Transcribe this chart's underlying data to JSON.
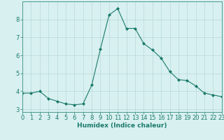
{
  "x": [
    0,
    1,
    2,
    3,
    4,
    5,
    6,
    7,
    8,
    9,
    10,
    11,
    12,
    13,
    14,
    15,
    16,
    17,
    18,
    19,
    20,
    21,
    22,
    23
  ],
  "y": [
    3.9,
    3.9,
    4.0,
    3.6,
    3.45,
    3.3,
    3.25,
    3.3,
    4.35,
    6.35,
    8.25,
    8.6,
    7.5,
    7.5,
    6.65,
    6.3,
    5.85,
    5.1,
    4.65,
    4.6,
    4.3,
    3.9,
    3.8,
    3.7
  ],
  "line_color": "#1a7a6a",
  "marker": "D",
  "marker_size": 2.0,
  "bg_color": "#d8f0f0",
  "grid_color": "#b8d8d8",
  "xlabel": "Humidex (Indice chaleur)",
  "xlim": [
    0,
    23
  ],
  "ylim": [
    2.85,
    9.0
  ],
  "yticks": [
    3,
    4,
    5,
    6,
    7,
    8
  ],
  "xticks": [
    0,
    1,
    2,
    3,
    4,
    5,
    6,
    7,
    8,
    9,
    10,
    11,
    12,
    13,
    14,
    15,
    16,
    17,
    18,
    19,
    20,
    21,
    22,
    23
  ],
  "label_fontsize": 6.5,
  "tick_fontsize": 6.0,
  "axis_color": "#1a7a6a",
  "spine_color": "#4a9a8a"
}
